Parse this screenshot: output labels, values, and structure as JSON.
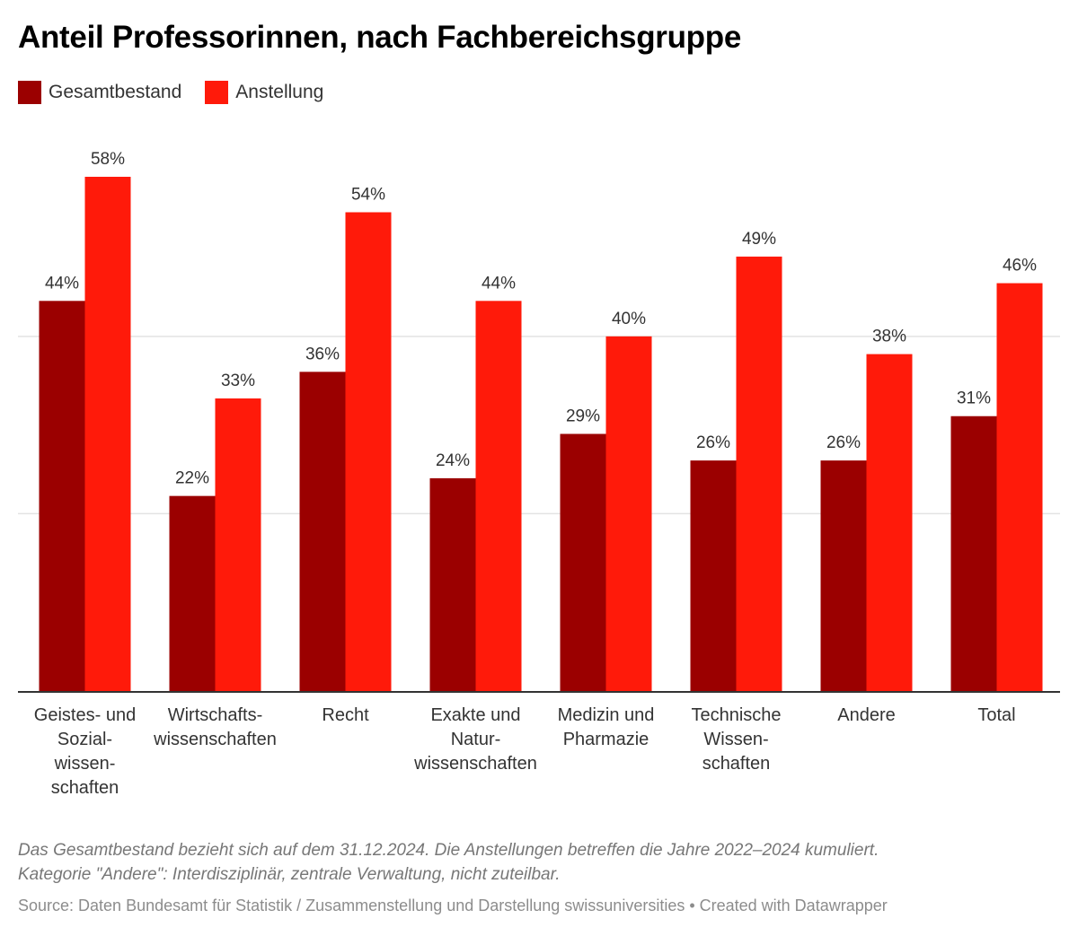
{
  "title": "Anteil Professorinnen, nach Fachbereichsgruppe",
  "legend": [
    {
      "label": "Gesamtbestand",
      "color": "#9b0000"
    },
    {
      "label": "Anstellung",
      "color": "#ff1a0a"
    }
  ],
  "notes": [
    "Das Gesamtbestand bezieht sich auf dem 31.12.2024. Die Anstellungen betreffen die Jahre 2022–2024 kumuliert.",
    "Kategorie \"Andere\": Interdisziplinär, zentrale Verwaltung, nicht zuteilbar."
  ],
  "source": "Source: Daten Bundesamt für Statistik / Zusammenstellung und Darstellung swissuniversities • Created with Datawrapper",
  "chart_data": {
    "type": "bar",
    "title": "Anteil Professorinnen, nach Fachbereichsgruppe",
    "xlabel": "",
    "ylabel": "",
    "ylim": [
      0,
      58
    ],
    "grid": true,
    "gridlines": [
      20,
      40
    ],
    "legend_position": "top-left",
    "categories": [
      [
        "Geistes- und",
        "Sozial-",
        "wissen-",
        "schaften"
      ],
      [
        "Wirtschafts-",
        "wissenschaften"
      ],
      [
        "Recht"
      ],
      [
        "Exakte und",
        "Natur-",
        "wissenschaften"
      ],
      [
        "Medizin und",
        "Pharmazie"
      ],
      [
        "Technische",
        "Wissen-",
        "schaften"
      ],
      [
        "Andere"
      ],
      [
        "Total"
      ]
    ],
    "series": [
      {
        "name": "Gesamtbestand",
        "color": "#9b0000",
        "values": [
          44,
          22,
          36,
          24,
          29,
          26,
          26,
          31
        ],
        "labels": [
          "44%",
          "22%",
          "36%",
          "24%",
          "29%",
          "26%",
          "26%",
          "31%"
        ]
      },
      {
        "name": "Anstellung",
        "color": "#ff1a0a",
        "values": [
          58,
          33,
          54,
          44,
          40,
          49,
          38,
          46
        ],
        "labels": [
          "58%",
          "33%",
          "54%",
          "44%",
          "40%",
          "49%",
          "38%",
          "46%"
        ]
      }
    ]
  }
}
